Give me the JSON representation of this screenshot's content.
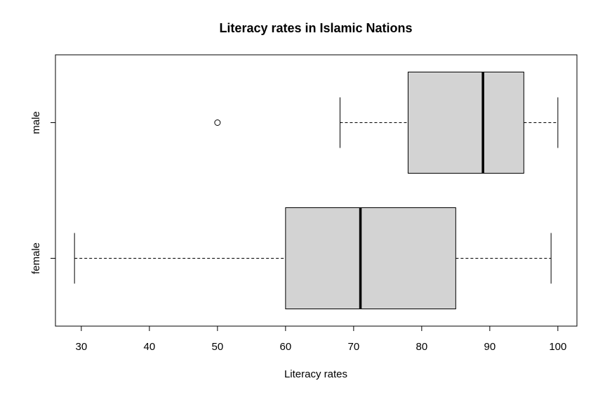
{
  "chart_data": {
    "type": "boxplot",
    "orientation": "horizontal",
    "title": "Literacy rates in Islamic Nations",
    "xlabel": "Literacy rates",
    "ylabel": "",
    "xlim": [
      26.2,
      102.8
    ],
    "x_ticks": [
      30,
      40,
      50,
      60,
      70,
      80,
      90,
      100
    ],
    "categories": [
      "female",
      "male"
    ],
    "series": [
      {
        "name": "female",
        "whisker_low": 29,
        "q1": 60,
        "median": 71,
        "q3": 85,
        "whisker_high": 99,
        "outliers": []
      },
      {
        "name": "male",
        "whisker_low": 68,
        "q1": 78,
        "median": 89,
        "q3": 95,
        "whisker_high": 100,
        "outliers": [
          50
        ]
      }
    ],
    "colors": {
      "box_fill": "#d3d3d3",
      "stroke": "#000000"
    },
    "grid": false,
    "legend": "none"
  }
}
